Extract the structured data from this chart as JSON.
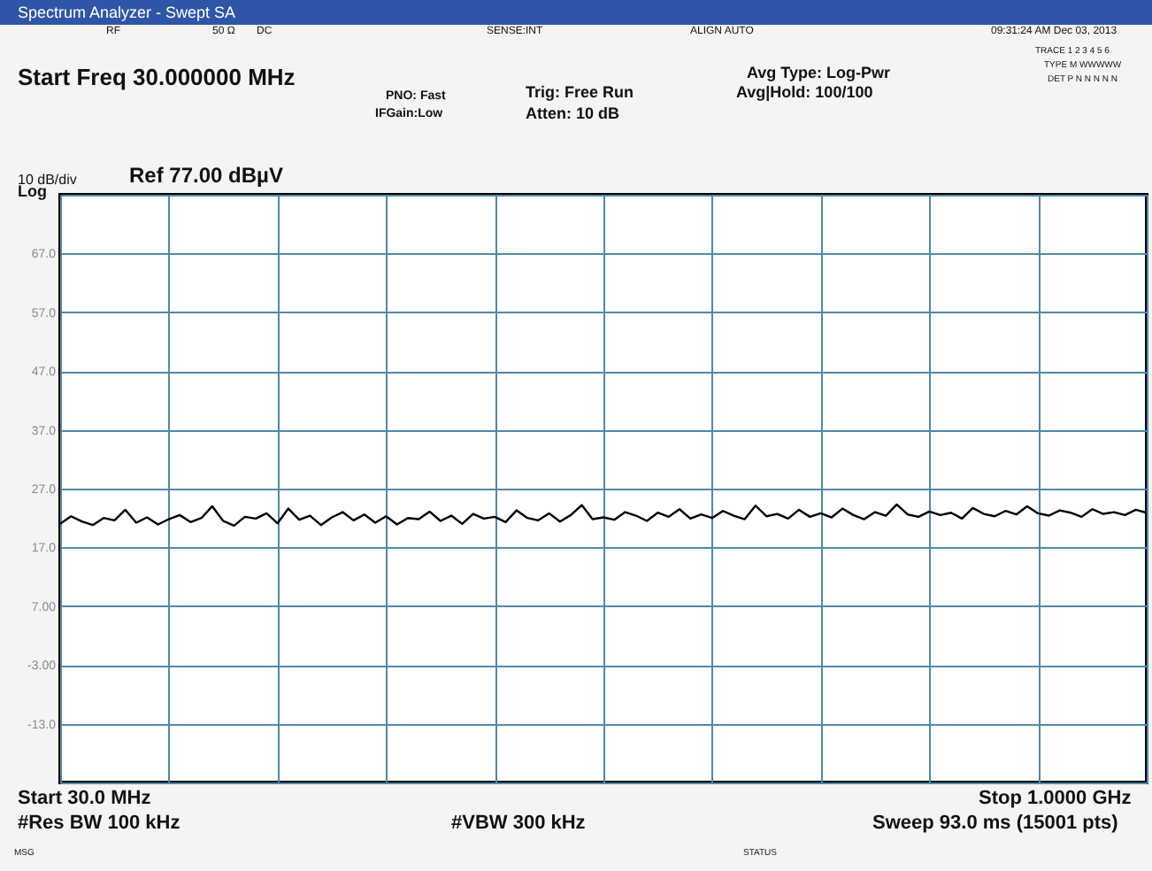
{
  "chart_data": {
    "type": "line",
    "title": "Spectrum Analyzer - Swept SA",
    "annotations": [
      "RF",
      "50 Ω",
      "DC",
      "SENSE:INT",
      "ALIGN AUTO",
      "09:31:24 AM Dec 03, 2013",
      "Start Freq 30.000000 MHz",
      "PNO: Fast",
      "IFGain:Low",
      "Trig: Free Run",
      "Atten: 10 dB",
      "Avg Type: Log-Pwr",
      "Avg|Hold: 100/100",
      "TRACE 1 2 3 4 5 6",
      "TYPE M WWWWW",
      "DET P N N N N N",
      "10 dB/div",
      "Ref 77.00 dBµV",
      "Log",
      "Start 30.0 MHz",
      "Stop 1.0000 GHz",
      "#Res BW 100 kHz",
      "#VBW 300 kHz",
      "Sweep  93.0 ms (15001 pts)",
      "MSG",
      "STATUS"
    ],
    "categories": [
      null,
      null,
      null,
      null,
      null,
      null,
      null,
      null,
      null,
      null,
      null,
      null,
      null,
      null,
      null,
      null,
      null,
      null,
      null,
      null,
      null,
      null,
      null,
      null,
      null,
      null,
      null,
      null,
      null,
      null,
      null,
      null,
      null,
      null,
      null,
      null,
      null,
      null,
      null,
      null,
      null,
      null,
      null,
      null,
      null,
      null,
      null,
      null,
      null,
      null,
      null,
      null,
      null,
      null,
      null,
      null,
      null,
      null,
      null,
      null,
      null,
      null,
      null,
      null,
      null,
      null,
      null,
      null,
      null,
      null,
      null,
      null,
      null,
      null,
      null,
      null,
      null,
      null,
      null,
      null,
      null,
      null,
      null,
      null,
      null,
      null,
      null,
      null,
      null,
      null,
      null,
      null,
      null,
      null,
      null,
      null,
      null,
      null,
      null,
      null,
      null
    ],
    "series": [
      {
        "color": "#000000",
        "values": [
          21.0,
          22.3,
          21.4,
          20.8,
          22.0,
          21.6,
          23.4,
          21.2,
          22.1,
          20.9,
          21.8,
          22.5,
          21.3,
          22.0,
          24.0,
          21.5,
          20.7,
          22.2,
          21.9,
          22.8,
          21.1,
          23.6,
          21.7,
          22.4,
          20.8,
          22.1,
          23.0,
          21.6,
          22.6,
          21.2,
          22.3,
          20.9,
          22.0,
          21.8,
          23.1,
          21.5,
          22.4,
          21.0,
          22.7,
          21.9,
          22.2,
          21.3,
          23.3,
          22.0,
          21.6,
          22.8,
          21.4,
          22.5,
          24.2,
          21.8,
          22.1,
          21.7,
          23.0,
          22.4,
          21.5,
          22.9,
          22.2,
          23.5,
          21.9,
          22.6,
          22.0,
          23.2,
          22.4,
          21.8,
          24.1,
          22.3,
          22.7,
          21.9,
          23.4,
          22.2,
          22.8,
          22.1,
          23.6,
          22.5,
          21.8,
          23.0,
          22.4,
          24.3,
          22.6,
          22.2,
          23.1,
          22.5,
          22.9,
          21.9,
          23.7,
          22.7,
          22.3,
          23.2,
          22.6,
          24.0,
          22.8,
          22.4,
          23.3,
          22.9,
          22.2,
          23.5,
          22.7,
          23.0,
          22.5,
          23.4,
          22.9
        ]
      }
    ],
    "ylim": [
      -23,
      77
    ],
    "yticks": [
      {
        "value": 77,
        "label": null
      },
      {
        "value": 67,
        "label": "67.0"
      },
      {
        "value": 57,
        "label": "57.0"
      },
      {
        "value": 47,
        "label": "47.0"
      },
      {
        "value": 37,
        "label": "37.0"
      },
      {
        "value": 27,
        "label": "27.0"
      },
      {
        "value": 17,
        "label": "17.0"
      },
      {
        "value": 7,
        "label": "7.00"
      },
      {
        "value": -3,
        "label": "-3.00"
      },
      {
        "value": -13,
        "label": "-13.0"
      },
      {
        "value": -23,
        "label": null
      }
    ],
    "grid": true,
    "line_style": "solid",
    "marker": "none"
  }
}
